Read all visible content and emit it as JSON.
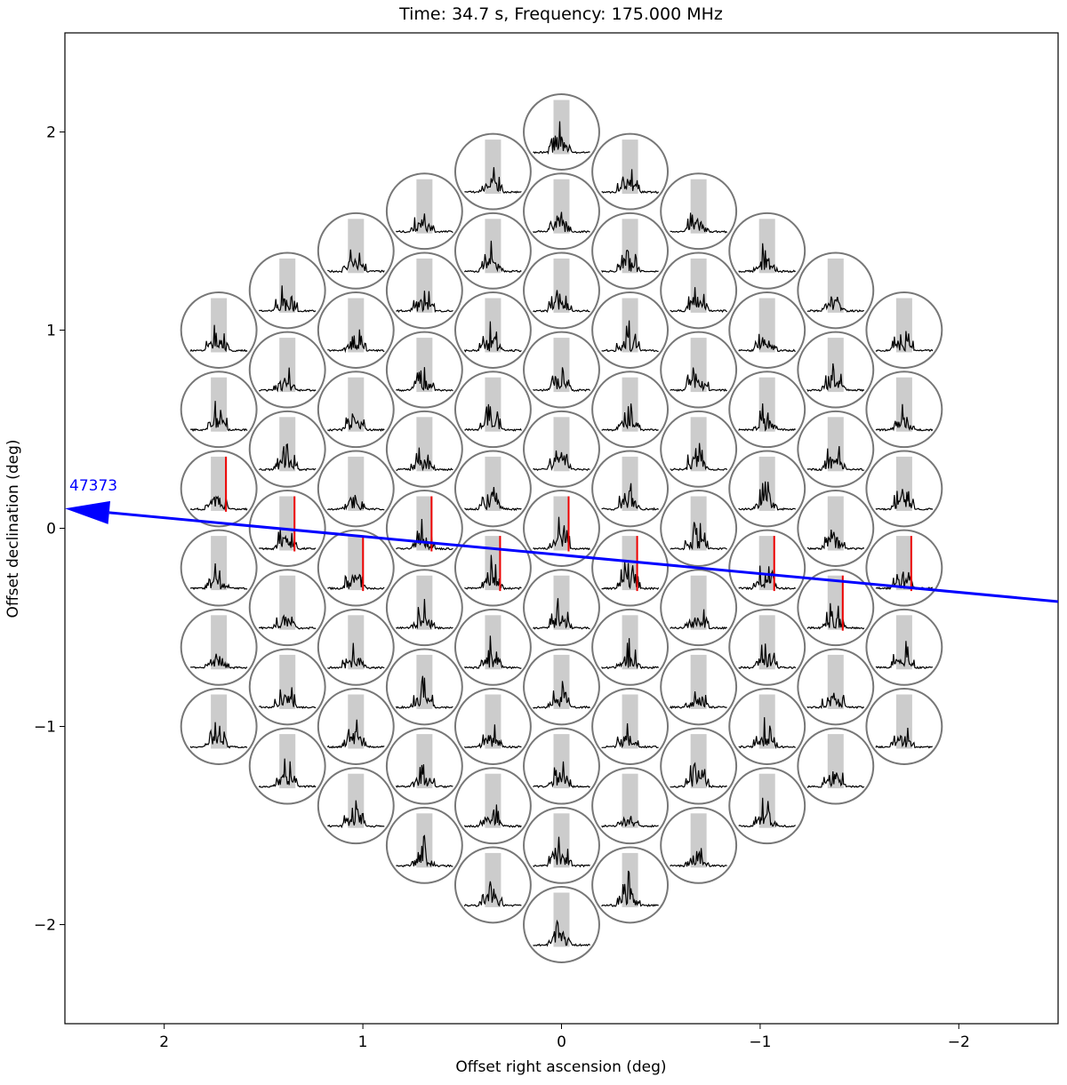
{
  "chart_data": {
    "type": "beam-grid",
    "title": "Time: 34.7 s, Frequency: 175.000 MHz",
    "xlabel": "Offset right ascension (deg)",
    "ylabel": "Offset declination (deg)",
    "xlim": [
      2.5,
      -2.5
    ],
    "ylim": [
      -2.5,
      2.5
    ],
    "xticks": [
      2,
      1,
      0,
      {
        "value": -1,
        "label": "−1"
      },
      {
        "value": -2,
        "label": "−2"
      }
    ],
    "yticks": [
      {
        "value": -2,
        "label": "−2"
      },
      {
        "value": -1,
        "label": "−1"
      },
      0,
      1,
      2
    ],
    "beams": {
      "radius": 0.19,
      "x": [
        1.725,
        1.725,
        1.725,
        1.725,
        1.725,
        1.725,
        1.38,
        1.38,
        1.38,
        1.38,
        1.38,
        1.38,
        1.38,
        1.035,
        1.035,
        1.035,
        1.035,
        1.035,
        1.035,
        1.035,
        1.035,
        0.69,
        0.69,
        0.69,
        0.69,
        0.69,
        0.69,
        0.69,
        0.69,
        0.69,
        0.345,
        0.345,
        0.345,
        0.345,
        0.345,
        0.345,
        0.345,
        0.345,
        0.345,
        0.345,
        0,
        0,
        0,
        0,
        0,
        0,
        0,
        0,
        0,
        0,
        0,
        -0.345,
        -0.345,
        -0.345,
        -0.345,
        -0.345,
        -0.345,
        -0.345,
        -0.345,
        -0.345,
        -0.345,
        -0.69,
        -0.69,
        -0.69,
        -0.69,
        -0.69,
        -0.69,
        -0.69,
        -0.69,
        -0.69,
        -1.035,
        -1.035,
        -1.035,
        -1.035,
        -1.035,
        -1.035,
        -1.035,
        -1.035,
        -1.38,
        -1.38,
        -1.38,
        -1.38,
        -1.38,
        -1.38,
        -1.38,
        -1.725,
        -1.725,
        -1.725,
        -1.725,
        -1.725,
        -1.725
      ],
      "y": [
        1.0,
        0.6,
        0.2,
        -0.2,
        -0.6,
        -1.0,
        1.2,
        0.8,
        0.4,
        0,
        -0.4,
        -0.8,
        -1.2,
        1.4,
        1.0,
        0.6,
        0.2,
        -0.2,
        -0.6,
        -1.0,
        -1.4,
        1.6,
        1.2,
        0.8,
        0.4,
        0,
        -0.4,
        -0.8,
        -1.2,
        -1.6,
        1.8,
        1.4,
        1.0,
        0.6,
        0.2,
        -0.2,
        -0.6,
        -1.0,
        -1.4,
        -1.8,
        2.0,
        1.6,
        1.2,
        0.8,
        0.4,
        0,
        -0.4,
        -0.8,
        -1.2,
        -1.6,
        -2.0,
        1.8,
        1.4,
        1.0,
        0.6,
        0.2,
        -0.2,
        -0.6,
        -1.0,
        -1.4,
        -1.8,
        1.6,
        1.2,
        0.8,
        0.4,
        0,
        -0.4,
        -0.8,
        -1.2,
        -1.6,
        1.4,
        1.0,
        0.6,
        0.2,
        -0.2,
        -0.6,
        -1.0,
        -1.4,
        1.2,
        0.8,
        0.4,
        0,
        -0.4,
        -0.8,
        -1.2,
        1.0,
        0.6,
        0.2,
        -0.2,
        -0.6,
        -1.0
      ],
      "flagged": [
        2,
        9,
        17,
        25,
        35,
        45,
        56,
        74,
        82,
        88
      ]
    },
    "track": {
      "label": "47373",
      "color": "#0000ff",
      "x": [
        -2.5,
        2.5
      ],
      "y": [
        -0.37,
        0.1
      ]
    }
  }
}
